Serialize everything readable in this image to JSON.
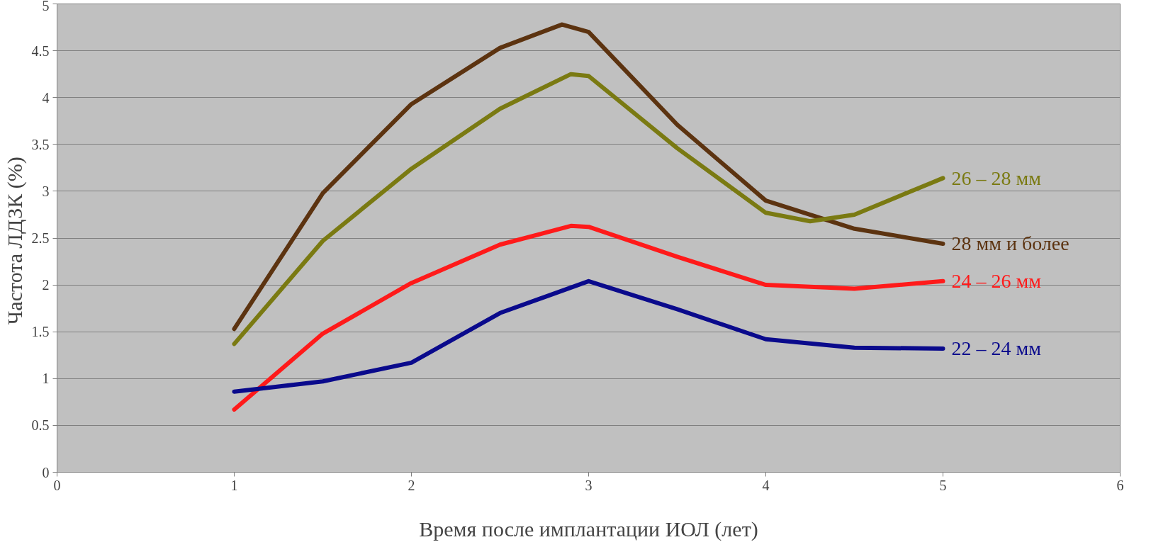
{
  "chart_data": {
    "type": "line",
    "xlabel": "Время после имплантации ИОЛ (лет)",
    "ylabel": "Частота  ЛДЗК (%)",
    "xlim": [
      0,
      6
    ],
    "xticks": [
      0,
      1,
      2,
      3,
      4,
      5,
      6
    ],
    "ylim": [
      0,
      5
    ],
    "yticks": [
      0,
      0.5,
      1,
      1.5,
      2,
      2.5,
      3,
      3.5,
      4,
      4.5,
      5
    ],
    "grid": "y",
    "legend": false,
    "marker": "none",
    "line_style": "solid",
    "series": [
      {
        "name": "28 мм и более",
        "color": "#5c3310",
        "x": [
          1,
          1.5,
          2,
          2.5,
          2.85,
          3,
          3.5,
          4,
          4.5,
          5
        ],
        "values": [
          1.53,
          2.98,
          3.93,
          4.53,
          4.78,
          4.7,
          3.71,
          2.9,
          2.6,
          2.44
        ]
      },
      {
        "name": "26 – 28 мм",
        "color": "#7a7a12",
        "x": [
          1,
          1.5,
          2,
          2.5,
          2.9,
          3,
          3.5,
          4,
          4.25,
          4.5,
          5
        ],
        "values": [
          1.37,
          2.47,
          3.24,
          3.88,
          4.25,
          4.23,
          3.46,
          2.77,
          2.68,
          2.75,
          3.14
        ]
      },
      {
        "name": "24 – 26 мм",
        "color": "#ff1a1a",
        "x": [
          1,
          1.5,
          2,
          2.5,
          2.9,
          3,
          3.5,
          4,
          4.5,
          5
        ],
        "values": [
          0.67,
          1.48,
          2.02,
          2.43,
          2.63,
          2.62,
          2.3,
          2.0,
          1.96,
          2.04
        ]
      },
      {
        "name": "22 – 24 мм",
        "color": "#0a0a8c",
        "x": [
          1,
          1.5,
          2,
          2.5,
          3,
          3.5,
          4,
          4.5,
          5
        ],
        "values": [
          0.86,
          0.97,
          1.17,
          1.7,
          2.04,
          1.74,
          1.42,
          1.33,
          1.32
        ]
      }
    ]
  }
}
